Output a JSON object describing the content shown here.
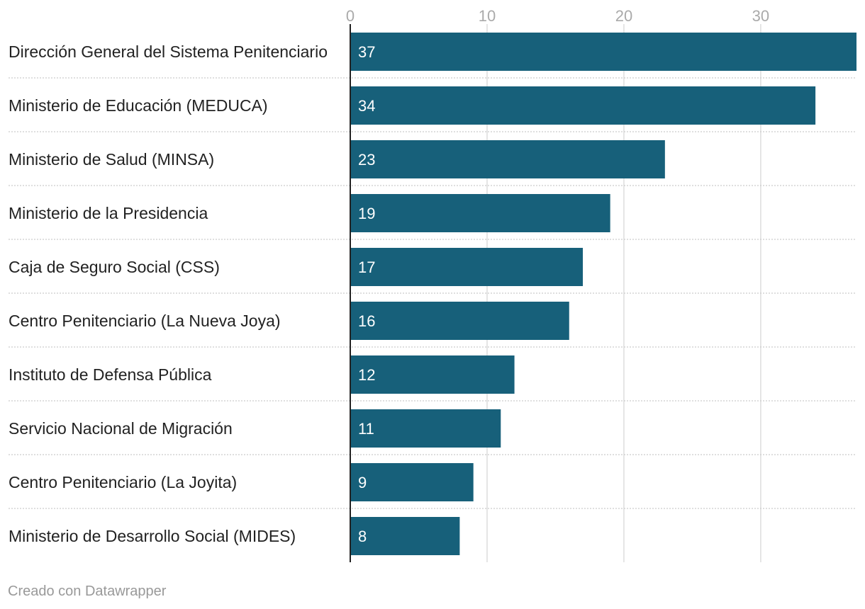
{
  "chart_data": {
    "type": "bar",
    "orientation": "horizontal",
    "title": "",
    "xlabel": "",
    "ylabel": "",
    "xlim": [
      0,
      37
    ],
    "x_ticks": [
      0,
      10,
      20,
      30
    ],
    "tick_labels": [
      "0",
      "10",
      "20",
      "30"
    ],
    "grid": true,
    "categories": [
      "Dirección General del Sistema Penitenciario",
      "Ministerio de Educación (MEDUCA)",
      "Ministerio de Salud (MINSA)",
      "Ministerio de la Presidencia",
      "Caja de Seguro Social (CSS)",
      "Centro Penitenciario (La Nueva Joya)",
      "Instituto de Defensa Pública",
      "Servicio Nacional de Migración",
      "Centro Penitenciario (La Joyita)",
      "Ministerio de Desarrollo Social (MIDES)"
    ],
    "values": [
      37,
      34,
      23,
      19,
      17,
      16,
      12,
      11,
      9,
      8
    ],
    "bar_color": "#17607a"
  },
  "footer": {
    "credit": "Creado con Datawrapper"
  },
  "colors": {
    "bar": "#17607a",
    "gridline": "#dddddd",
    "row_separator": "#cccccc",
    "axis": "#222222",
    "tick_text": "#aaaaaa",
    "credit_text": "#999999"
  }
}
